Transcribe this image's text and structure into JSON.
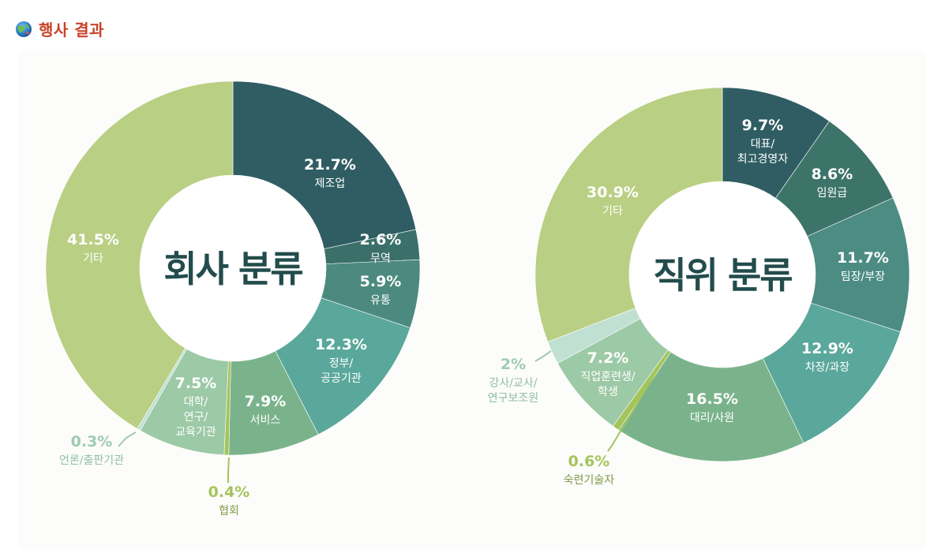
{
  "header": {
    "title": "행사 결과"
  },
  "colors": {
    "title": "#c8432a",
    "center_text": "#234c4c",
    "label_outside": "#9ecbb0",
    "label_outside_yellow": "#a4c45c"
  },
  "chart_data": [
    {
      "type": "pie",
      "title": "회사 분류",
      "slices": [
        {
          "label": "제조업",
          "value": 21.7,
          "value_text": "21.7%",
          "color": "#2f5d63"
        },
        {
          "label": "무역",
          "value": 2.6,
          "value_text": "2.6%",
          "color": "#3a7069"
        },
        {
          "label": "유통",
          "value": 5.9,
          "value_text": "5.9%",
          "color": "#4c8a7f"
        },
        {
          "label": "정부/\n공공기관",
          "value": 12.3,
          "value_text": "12.3%",
          "color": "#5aa89b"
        },
        {
          "label": "서비스",
          "value": 7.9,
          "value_text": "7.9%",
          "color": "#7ab38b"
        },
        {
          "label": "협회",
          "value": 0.4,
          "value_text": "0.4%",
          "color": "#a4c45c"
        },
        {
          "label": "대학/\n연구/\n교육기관",
          "value": 7.5,
          "value_text": "7.5%",
          "color": "#9cc9a6"
        },
        {
          "label": "언론/출판기관",
          "value": 0.3,
          "value_text": "0.3%",
          "color": "#bfe0d2"
        },
        {
          "label": "기타",
          "value": 41.5,
          "value_text": "41.5%",
          "color": "#b9cf83"
        }
      ]
    },
    {
      "type": "pie",
      "title": "직위 분류",
      "slices": [
        {
          "label": "대표/\n최고경영자",
          "value": 9.7,
          "value_text": "9.7%",
          "color": "#2f5d63"
        },
        {
          "label": "임원급",
          "value": 8.6,
          "value_text": "8.6%",
          "color": "#3d7469"
        },
        {
          "label": "팀장/부장",
          "value": 11.7,
          "value_text": "11.7%",
          "color": "#4c8c82"
        },
        {
          "label": "차장/과장",
          "value": 12.9,
          "value_text": "12.9%",
          "color": "#5aa89b"
        },
        {
          "label": "대리/사원",
          "value": 16.5,
          "value_text": "16.5%",
          "color": "#7ab38b"
        },
        {
          "label": "숙련기술자",
          "value": 0.6,
          "value_text": "0.6%",
          "color": "#a4c45c"
        },
        {
          "label": "직업훈련생/\n학생",
          "value": 7.2,
          "value_text": "7.2%",
          "color": "#9cc9a6"
        },
        {
          "label": "강사/교사/\n연구보조원",
          "value": 2,
          "value_text": "2%",
          "color": "#bfe0d2"
        },
        {
          "label": "기타",
          "value": 30.9,
          "value_text": "30.9%",
          "color": "#b9cf83"
        }
      ]
    }
  ]
}
